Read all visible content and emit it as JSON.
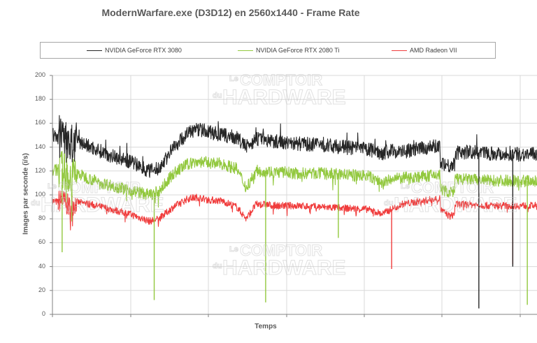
{
  "title": "ModernWarfare.exe (D3D12) en 2560x1440 - Frame Rate",
  "legend": [
    {
      "label": "NVIDIA GeForce RTX 3080",
      "color": "#262626"
    },
    {
      "label": "NVIDIA GeForce RTX 2080 Ti",
      "color": "#92c83e"
    },
    {
      "label": "AMD Radeon VII",
      "color": "#f03c3c"
    }
  ],
  "watermark": {
    "line1_small": "Le",
    "line1": "COMPTOIR",
    "line2_small": "du",
    "line2": "HARDWARE"
  },
  "chart_data": {
    "type": "line",
    "title": "ModernWarfare.exe (D3D12) en 2560x1440 - Frame Rate",
    "xlabel": "Temps",
    "ylabel": "Images par seconde (i/s)",
    "ylim": [
      0,
      200
    ],
    "yticks": [
      0,
      20,
      40,
      60,
      80,
      100,
      120,
      140,
      160,
      180,
      200
    ],
    "grid": true,
    "legend_position": "top",
    "x_note": "x is normalized time (0 = start, 1 = right edge of visible plot); no x tick labels shown",
    "series": [
      {
        "name": "NVIDIA GeForce RTX 3080",
        "color": "#262626",
        "x": [
          0.0,
          0.01,
          0.02,
          0.035,
          0.05,
          0.08,
          0.12,
          0.16,
          0.2,
          0.22,
          0.25,
          0.28,
          0.3,
          0.32,
          0.35,
          0.38,
          0.4,
          0.42,
          0.44,
          0.46,
          0.48,
          0.5,
          0.55,
          0.6,
          0.65,
          0.68,
          0.7,
          0.72,
          0.75,
          0.78,
          0.8,
          0.8,
          0.82,
          0.83,
          0.83,
          0.86,
          0.9,
          0.95,
          1.0
        ],
        "values": [
          150,
          148,
          150,
          140,
          145,
          140,
          133,
          128,
          120,
          122,
          140,
          152,
          155,
          153,
          150,
          148,
          140,
          147,
          146,
          145,
          144,
          143,
          142,
          140,
          138,
          135,
          137,
          136,
          138,
          140,
          141,
          128,
          124,
          126,
          135,
          136,
          135,
          134,
          134
        ],
        "spikes": [
          {
            "x": 0.88,
            "min": 5
          },
          {
            "x": 0.95,
            "min": 40
          }
        ]
      },
      {
        "name": "NVIDIA GeForce RTX 2080 Ti",
        "color": "#92c83e",
        "x": [
          0.0,
          0.01,
          0.02,
          0.035,
          0.05,
          0.08,
          0.12,
          0.16,
          0.2,
          0.22,
          0.25,
          0.28,
          0.3,
          0.32,
          0.35,
          0.38,
          0.4,
          0.42,
          0.44,
          0.46,
          0.48,
          0.5,
          0.55,
          0.6,
          0.65,
          0.68,
          0.7,
          0.72,
          0.75,
          0.78,
          0.8,
          0.8,
          0.82,
          0.83,
          0.83,
          0.86,
          0.9,
          0.95,
          1.0
        ],
        "values": [
          120,
          121,
          122,
          115,
          118,
          113,
          108,
          104,
          100,
          103,
          118,
          126,
          128,
          127,
          126,
          122,
          106,
          120,
          120,
          119,
          119,
          118,
          118,
          117,
          116,
          110,
          113,
          114,
          115,
          116,
          117,
          105,
          102,
          103,
          113,
          113,
          112,
          112,
          112
        ],
        "spikes": [
          {
            "x": 0.02,
            "min": 52
          },
          {
            "x": 0.21,
            "min": 12
          },
          {
            "x": 0.44,
            "min": 10
          },
          {
            "x": 0.59,
            "min": 64
          },
          {
            "x": 0.98,
            "min": 8
          }
        ]
      },
      {
        "name": "AMD Radeon VII",
        "color": "#f03c3c",
        "x": [
          0.0,
          0.01,
          0.02,
          0.035,
          0.05,
          0.08,
          0.12,
          0.16,
          0.2,
          0.22,
          0.25,
          0.28,
          0.3,
          0.32,
          0.35,
          0.38,
          0.4,
          0.42,
          0.44,
          0.46,
          0.48,
          0.5,
          0.55,
          0.6,
          0.65,
          0.68,
          0.7,
          0.72,
          0.75,
          0.78,
          0.8,
          0.8,
          0.82,
          0.83,
          0.83,
          0.86,
          0.9,
          0.95,
          1.0
        ],
        "values": [
          95,
          94,
          96,
          90,
          94,
          92,
          88,
          84,
          78,
          80,
          90,
          97,
          98,
          96,
          95,
          90,
          80,
          92,
          92,
          91,
          91,
          91,
          90,
          89,
          88,
          84,
          88,
          92,
          94,
          96,
          97,
          88,
          82,
          84,
          92,
          92,
          91,
          91,
          91
        ],
        "spikes": [
          {
            "x": 0.7,
            "min": 38
          },
          {
            "x": 0.95,
            "min": 42
          }
        ]
      }
    ]
  }
}
